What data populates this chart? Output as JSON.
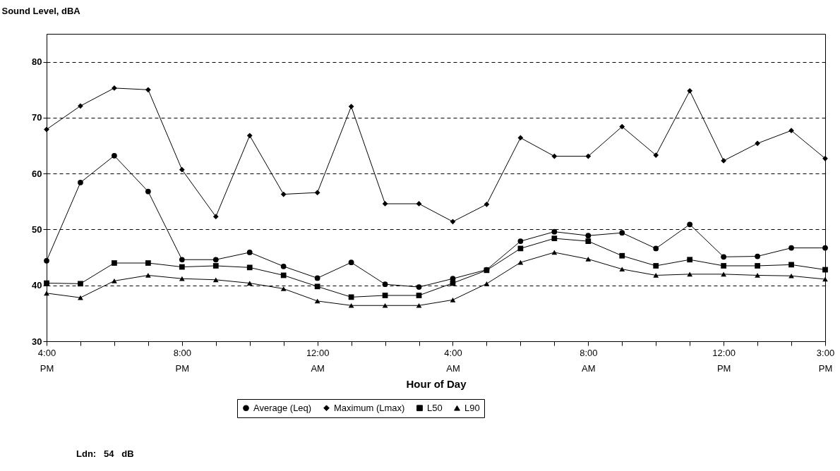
{
  "chart_data": {
    "type": "line",
    "ylabel": "Sound Level, dBA",
    "xlabel": "Hour of Day",
    "categories": [
      "4:00 PM",
      null,
      null,
      null,
      "8:00 PM",
      null,
      null,
      null,
      "12:00 AM",
      null,
      null,
      null,
      "4:00 AM",
      null,
      null,
      null,
      "8:00 AM",
      null,
      null,
      null,
      "12:00 PM",
      null,
      null,
      "3:00 PM"
    ],
    "series": [
      {
        "name": "Average (Leq)",
        "color": "#000000",
        "marker": "circle",
        "values": [
          44.4,
          58.4,
          63.2,
          56.8,
          44.6,
          44.6,
          45.9,
          43.4,
          41.3,
          44.1,
          40.2,
          39.7,
          41.2,
          42.8,
          47.9,
          49.6,
          48.9,
          49.4,
          46.6,
          50.9,
          45.1,
          45.2,
          46.7,
          46.7
        ]
      },
      {
        "name": "Maximum (Lmax)",
        "color": "#000000",
        "marker": "diamond",
        "values": [
          67.9,
          72.1,
          75.3,
          75.0,
          60.7,
          52.3,
          66.8,
          56.3,
          56.6,
          72.0,
          54.6,
          54.6,
          51.4,
          54.5,
          66.4,
          63.1,
          63.1,
          68.4,
          63.3,
          74.8,
          62.3,
          65.4,
          67.7,
          62.7
        ]
      },
      {
        "name": "L50",
        "color": "#000000",
        "marker": "square",
        "values": [
          40.4,
          40.3,
          44.0,
          44.0,
          43.3,
          43.5,
          43.2,
          41.8,
          39.8,
          37.9,
          38.2,
          38.2,
          40.4,
          42.7,
          46.6,
          48.4,
          47.9,
          45.3,
          43.5,
          44.6,
          43.5,
          43.5,
          43.7,
          42.8
        ]
      },
      {
        "name": "L90",
        "color": "#000000",
        "marker": "triangle",
        "values": [
          38.6,
          37.8,
          40.8,
          41.8,
          41.2,
          41.0,
          40.4,
          39.4,
          37.2,
          36.4,
          36.4,
          36.4,
          37.4,
          40.3,
          44.1,
          45.9,
          44.7,
          42.9,
          41.8,
          42.0,
          42.0,
          41.8,
          41.7,
          41.1
        ]
      }
    ],
    "ylim": [
      30,
      85
    ],
    "yticks": [
      30,
      40,
      50,
      60,
      70,
      80
    ],
    "grid": "y",
    "line_style": "solid",
    "legend": "bottom",
    "annotations": [
      "Ldn:   54   dB"
    ]
  }
}
